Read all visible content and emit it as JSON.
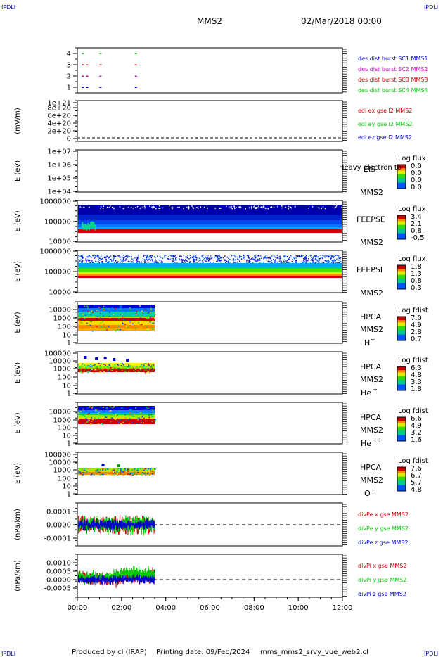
{
  "header": {
    "corner_tl": "IPDLI",
    "corner_tr": "IPDLI",
    "corner_bl": "IPDLI",
    "corner_br": "IPDLI",
    "title": "MMS2",
    "date": "02/Mar/2018 00:00"
  },
  "footer": {
    "produced": "Produced by cl (IRAP)",
    "printing": "Printing date: 09/Feb/2024",
    "file": "mms_mms2_srvy_vue_web2.cl"
  },
  "colors": {
    "black": "#000000",
    "red": "#cc0000",
    "green": "#00cc00",
    "blue": "#0000cc",
    "magenta": "#cc00cc"
  },
  "chart_data": [
    {
      "type": "scatter",
      "id": "des-dist-burst",
      "ytick_labels": [
        "1",
        "2",
        "3",
        "4"
      ],
      "ylim": [
        0.5,
        4.5
      ],
      "xlim": [
        0,
        12
      ],
      "legend": [
        {
          "label": "des dist burst SC1 MMS1",
          "color": "#0000cc"
        },
        {
          "label": "des dist burst SC2 MMS2",
          "color": "#cc00cc"
        },
        {
          "label": "des dist burst SC3 MMS3",
          "color": "#cc0000"
        },
        {
          "label": "des dist burst SC4 MMS4",
          "color": "#00cc00"
        }
      ],
      "series": [
        {
          "name": "des dist burst SC4 MMS4",
          "level": 4,
          "x": [
            0.2,
            1.0,
            2.6
          ],
          "color": "#00cc00"
        },
        {
          "name": "des dist burst SC3 MMS3",
          "level": 3,
          "x": [
            0.2,
            0.4,
            1.0,
            2.6
          ],
          "color": "#cc0000"
        },
        {
          "name": "des dist burst SC2 MMS2",
          "level": 2,
          "x": [
            0.2,
            0.4,
            1.0,
            2.6
          ],
          "color": "#cc00cc"
        },
        {
          "name": "des dist burst SC1 MMS1",
          "level": 1,
          "x": [
            0.2,
            0.4,
            1.0,
            2.6
          ],
          "color": "#0000cc"
        }
      ]
    },
    {
      "type": "line",
      "id": "edi",
      "ylabel": "(mV/m)",
      "ytick_labels": [
        "0",
        "2e+20",
        "4e+20",
        "6e+20",
        "8e+20",
        "1e+21"
      ],
      "ylim": [
        0,
        1e+21
      ],
      "xlim": [
        0,
        12
      ],
      "legend": [
        {
          "label": "edi ex gse l2 MMS2",
          "color": "#cc0000"
        },
        {
          "label": "edi ey gse l2 MMS2",
          "color": "#00cc00"
        },
        {
          "label": "edi ez gse l2 MMS2",
          "color": "#0000cc"
        }
      ]
    },
    {
      "type": "heatmap",
      "id": "eis",
      "ylabel": "E (eV)",
      "ytick_labels": [
        "1e+04",
        "1e+05",
        "1e+06",
        "1e+07"
      ],
      "xlim": [
        0,
        12
      ],
      "instrument": "EIS",
      "spacecraft": "MMS2",
      "species": "Heavy electron to",
      "colorbar_title": "Log flux",
      "colorbar_ticks": [
        "0.0",
        "0.0",
        "0.0",
        "0.0"
      ]
    },
    {
      "type": "heatmap",
      "id": "feepse",
      "ylabel": "E (eV)",
      "ytick_labels": [
        "10000",
        "100000",
        "1000000"
      ],
      "xlim": [
        0,
        12
      ],
      "data_x_range": [
        0,
        12
      ],
      "instrument": "FEEPSE",
      "spacecraft": "MMS2",
      "colorbar_title": "Log flux",
      "colorbar_ticks": [
        "3.4",
        "2.1",
        "0.8",
        "-0.5"
      ]
    },
    {
      "type": "heatmap",
      "id": "feepsi",
      "ylabel": "E (eV)",
      "ytick_labels": [
        "10000",
        "100000",
        "1000000"
      ],
      "xlim": [
        0,
        12
      ],
      "data_x_range": [
        0,
        12
      ],
      "instrument": "FEEPSI",
      "spacecraft": "MMS2",
      "colorbar_title": "Log flux",
      "colorbar_ticks": [
        "1.8",
        "1.3",
        "0.8",
        "0.3"
      ]
    },
    {
      "type": "heatmap",
      "id": "hpca-h",
      "ylabel": "E (eV)",
      "ytick_labels": [
        "1",
        "10",
        "100",
        "1000",
        "10000"
      ],
      "xlim": [
        0,
        12
      ],
      "data_x_range": [
        0,
        3.5
      ],
      "instrument": "HPCA",
      "spacecraft": "MMS2",
      "species": "H",
      "species_sup": "+",
      "colorbar_title": "Log fdist",
      "colorbar_ticks": [
        "7.0",
        "4.9",
        "2.8",
        "0.7"
      ]
    },
    {
      "type": "heatmap",
      "id": "hpca-he",
      "ylabel": "E (eV)",
      "ytick_labels": [
        "1",
        "10",
        "100",
        "1000",
        "10000",
        "100000"
      ],
      "xlim": [
        0,
        12
      ],
      "data_x_range": [
        0,
        3.5
      ],
      "instrument": "HPCA",
      "spacecraft": "MMS2",
      "species": "He",
      "species_sup": "+",
      "colorbar_title": "Log fdist",
      "colorbar_ticks": [
        "6.3",
        "4.8",
        "3.3",
        "1.8"
      ]
    },
    {
      "type": "heatmap",
      "id": "hpca-hepp",
      "ylabel": "E (eV)",
      "ytick_labels": [
        "1",
        "10",
        "100",
        "1000",
        "10000"
      ],
      "xlim": [
        0,
        12
      ],
      "data_x_range": [
        0,
        3.5
      ],
      "instrument": "HPCA",
      "spacecraft": "MMS2",
      "species": "He",
      "species_sup": "++",
      "colorbar_title": "Log fdist",
      "colorbar_ticks": [
        "6.6",
        "4.9",
        "3.2",
        "1.6"
      ]
    },
    {
      "type": "heatmap",
      "id": "hpca-o",
      "ylabel": "E (eV)",
      "ytick_labels": [
        "1",
        "10",
        "100",
        "1000",
        "10000",
        "100000"
      ],
      "xlim": [
        0,
        12
      ],
      "data_x_range": [
        0,
        3.5
      ],
      "instrument": "HPCA",
      "spacecraft": "MMS2",
      "species": "O",
      "species_sup": "+",
      "colorbar_title": "Log fdist",
      "colorbar_ticks": [
        "7.6",
        "6.7",
        "5.7",
        "4.8"
      ]
    },
    {
      "type": "line",
      "id": "divpe",
      "ylabel": "(nPa/km)",
      "ytick_labels": [
        "-0.0001",
        "0.0000",
        "0.0001"
      ],
      "ylim": [
        -0.00015,
        0.00013
      ],
      "xlim": [
        0,
        12
      ],
      "data_x_range": [
        0,
        3.5
      ],
      "legend": [
        {
          "label": "divPe x gse MMS2",
          "color": "#cc0000"
        },
        {
          "label": "divPe y gse MMS2",
          "color": "#00cc00"
        },
        {
          "label": "divPe z gse MMS2",
          "color": "#0000cc"
        }
      ]
    },
    {
      "type": "line",
      "id": "divpi",
      "ylabel": "(nPa/km)",
      "ytick_labels": [
        "-0.0005",
        "0.0000",
        "0.0005",
        "0.0010"
      ],
      "ylim": [
        -0.0009,
        0.0014
      ],
      "xlim": [
        0,
        12
      ],
      "data_x_range": [
        0,
        3.5
      ],
      "legend": [
        {
          "label": "divPi x gse MMS2",
          "color": "#cc0000"
        },
        {
          "label": "divPi y gse MMS2",
          "color": "#00cc00"
        },
        {
          "label": "divPi z gse MMS2",
          "color": "#0000cc"
        }
      ]
    }
  ],
  "xaxis": {
    "xlim": [
      0,
      12
    ],
    "tick_labels": [
      "00:00",
      "02:00",
      "04:00",
      "06:00",
      "08:00",
      "10:00",
      "12:00"
    ]
  }
}
